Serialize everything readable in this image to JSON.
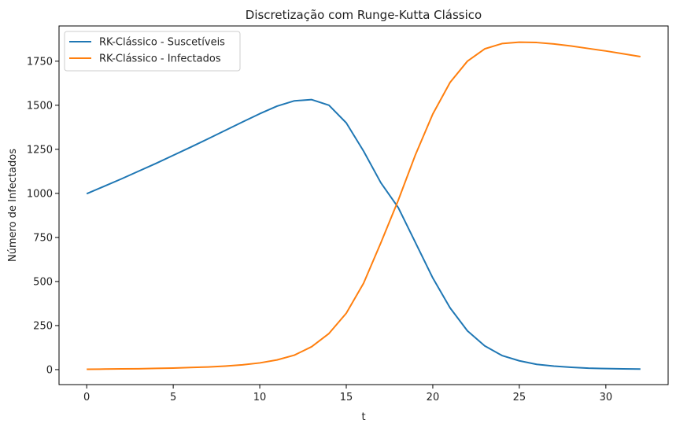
{
  "chart_data": {
    "type": "line",
    "title": "Discretização com Runge-Kutta Clássico",
    "xlabel": "t",
    "ylabel": "Número de Infectados",
    "xlim": [
      -1.6,
      33.6
    ],
    "ylim": [
      -85,
      1950
    ],
    "xticks": [
      0,
      5,
      10,
      15,
      20,
      25,
      30
    ],
    "yticks": [
      0,
      250,
      500,
      750,
      1000,
      1250,
      1500,
      1750
    ],
    "grid": false,
    "legend_position": "upper-left",
    "series": [
      {
        "name": "RK-Clássico - Suscetíveis",
        "color": "#1f77b4",
        "x": [
          0,
          1,
          2,
          3,
          4,
          5,
          6,
          7,
          8,
          9,
          10,
          11,
          12,
          13,
          14,
          15,
          16,
          17,
          18,
          19,
          20,
          21,
          22,
          23,
          24,
          25,
          26,
          27,
          28,
          29,
          30,
          31,
          32
        ],
        "y": [
          998,
          1040,
          1082,
          1126,
          1170,
          1216,
          1262,
          1309,
          1357,
          1405,
          1452,
          1495,
          1525,
          1532,
          1500,
          1400,
          1240,
          1060,
          920,
          720,
          520,
          350,
          220,
          135,
          80,
          50,
          30,
          20,
          13,
          8,
          6,
          4,
          3
        ]
      },
      {
        "name": "RK-Clássico - Infectados",
        "color": "#ff7f0e",
        "x": [
          0,
          1,
          2,
          3,
          4,
          5,
          6,
          7,
          8,
          9,
          10,
          11,
          12,
          13,
          14,
          15,
          16,
          17,
          18,
          19,
          20,
          21,
          22,
          23,
          24,
          25,
          26,
          27,
          28,
          29,
          30,
          31,
          32
        ],
        "y": [
          2,
          3,
          4,
          5,
          7,
          9,
          12,
          15,
          20,
          27,
          38,
          55,
          82,
          130,
          205,
          320,
          490,
          720,
          960,
          1220,
          1450,
          1630,
          1750,
          1820,
          1850,
          1858,
          1856,
          1848,
          1836,
          1822,
          1808,
          1792,
          1776
        ]
      }
    ]
  }
}
